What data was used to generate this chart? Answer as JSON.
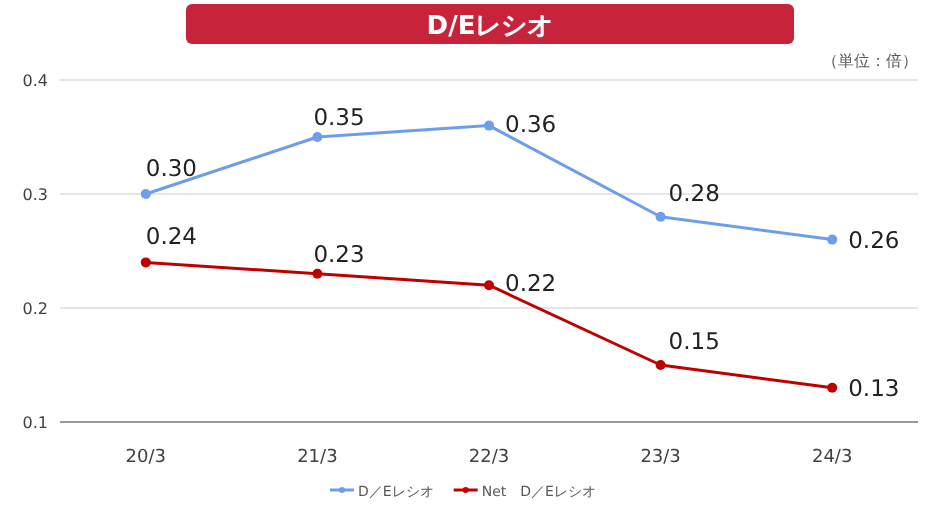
{
  "chart_data": {
    "type": "line",
    "title": "D/Eレシオ",
    "annotations": [
      "（単位：倍）"
    ],
    "categories": [
      "20/3",
      "21/3",
      "22/3",
      "23/3",
      "24/3"
    ],
    "series": [
      {
        "name": "D／Eレシオ",
        "color": "#6d9eeb",
        "values": [
          0.3,
          0.35,
          0.36,
          0.28,
          0.26
        ],
        "value_labels": [
          "0.30",
          "0.35",
          "0.36",
          "0.28",
          "0.26"
        ]
      },
      {
        "name": "Net　D／Eレシオ",
        "color": "#c00000",
        "values": [
          0.24,
          0.23,
          0.22,
          0.15,
          0.13
        ],
        "value_labels": [
          "0.24",
          "0.23",
          "0.22",
          "0.15",
          "0.13"
        ]
      }
    ],
    "ylim": [
      0.1,
      0.4
    ],
    "yticks": [
      0.1,
      0.2,
      0.3,
      0.4
    ],
    "grid": "y",
    "legend": "bottom",
    "marker": "circle",
    "line_style": "solid"
  }
}
